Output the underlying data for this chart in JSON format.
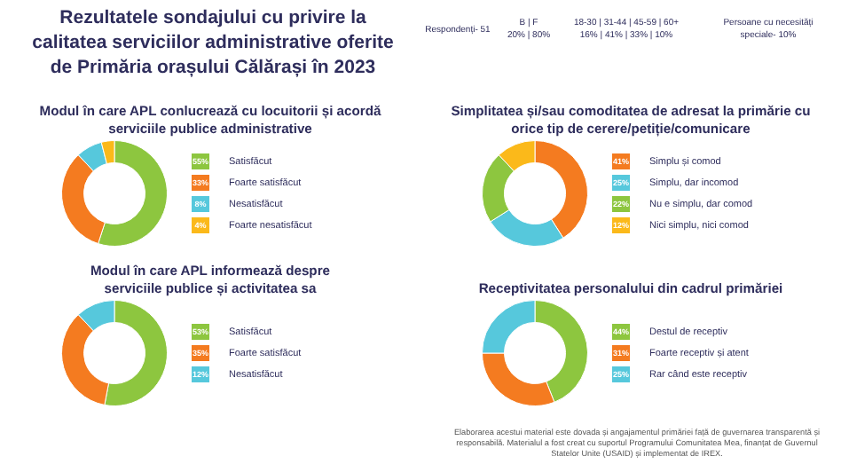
{
  "chart_data": [
    {
      "type": "other",
      "title": "Rezultatele sondajului cu privire la calitatea serviciilor administrative oferite de Primăria orașului Călărași în 2023",
      "annotations": [
        "Respondenți- 51",
        "B | F\n20% | 80%",
        "18-30 | 31-44 | 45-59 | 60+\n16% | 41% | 33% | 10%",
        "Persoane cu necesități\nspeciale- 10%",
        "Elaborarea acestui material este dovada și angajamentul primăriei față de guvernarea transparentă și responsabilă. Materialul a fost creat cu suportul Programului Comunitatea Mea, finanțat de Guvernul Statelor Unite (USAID) și implementat de IREX."
      ]
    },
    {
      "type": "donut",
      "title": "Modul în care APL conlucrează cu locuitorii și acordă serviciile publice administrative",
      "categories": [
        "Satisfăcut",
        "Foarte satisfăcut",
        "Nesatisfăcut",
        "Foarte nesatisfăcut"
      ],
      "values": [
        55,
        33,
        8,
        4
      ],
      "colors": [
        "#8dc63f",
        "#f47b20",
        "#56c8dc",
        "#fbb91a"
      ],
      "value_labels": [
        "55%",
        "33%",
        "8%",
        "4%"
      ],
      "legend": "right"
    },
    {
      "type": "donut",
      "title": "Simplitatea și/sau comoditatea de adresat la primărie cu orice tip de cerere/petiție/comunicare",
      "categories": [
        "Simplu și comod",
        "Simplu, dar incomod",
        "Nu e simplu, dar comod",
        "Nici simplu, nici comod"
      ],
      "values": [
        41,
        25,
        22,
        12
      ],
      "colors": [
        "#f47b20",
        "#56c8dc",
        "#8dc63f",
        "#fbb91a"
      ],
      "value_labels": [
        "41%",
        "25%",
        "22%",
        "12%"
      ],
      "legend": "right"
    },
    {
      "type": "donut",
      "title": "Modul în care APL informează despre serviciile publice și activitatea sa",
      "categories": [
        "Satisfăcut",
        "Foarte satisfăcut",
        "Nesatisfăcut"
      ],
      "values": [
        53,
        35,
        12
      ],
      "colors": [
        "#8dc63f",
        "#f47b20",
        "#56c8dc"
      ],
      "value_labels": [
        "53%",
        "35%",
        "12%"
      ],
      "legend": "right"
    },
    {
      "type": "donut",
      "title": "Receptivitatea personalului din cadrul primăriei",
      "categories": [
        "Destul de receptiv",
        "Foarte receptiv și atent",
        "Rar când este receptiv"
      ],
      "values": [
        44,
        31,
        25
      ],
      "colors": [
        "#8dc63f",
        "#f47b20",
        "#56c8dc"
      ],
      "value_labels": [
        "44%",
        "31%",
        "25%"
      ],
      "legend": "right"
    }
  ]
}
